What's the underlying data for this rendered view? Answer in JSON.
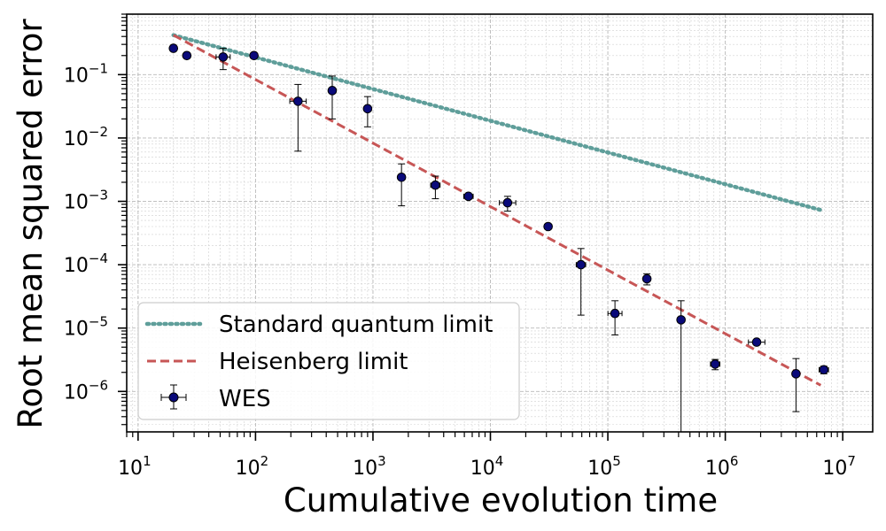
{
  "chart_data": {
    "type": "scatter",
    "xlabel": "Cumulative evolution time",
    "ylabel": "Root mean squared error",
    "xscale": "log",
    "yscale": "log",
    "xlim": [
      8,
      18000000
    ],
    "ylim": [
      2.3e-07,
      0.9
    ],
    "grid": true,
    "legend_position": "bottom-left",
    "x_ticks": [
      {
        "base": "10",
        "exp": "1"
      },
      {
        "base": "10",
        "exp": "2"
      },
      {
        "base": "10",
        "exp": "3"
      },
      {
        "base": "10",
        "exp": "4"
      },
      {
        "base": "10",
        "exp": "5"
      },
      {
        "base": "10",
        "exp": "6"
      },
      {
        "base": "10",
        "exp": "7"
      }
    ],
    "y_ticks": [
      {
        "base": "10",
        "exp": "−1"
      },
      {
        "base": "10",
        "exp": "−2"
      },
      {
        "base": "10",
        "exp": "−3"
      },
      {
        "base": "10",
        "exp": "−4"
      },
      {
        "base": "10",
        "exp": "−5"
      },
      {
        "base": "10",
        "exp": "−6"
      }
    ],
    "series": [
      {
        "name": "Standard quantum limit",
        "kind": "line",
        "style": "dotted",
        "color": "#5f9e9a",
        "x": [
          20,
          6500000
        ],
        "y": [
          0.42,
          0.00073
        ]
      },
      {
        "name": "Heisenberg limit",
        "kind": "line",
        "style": "dashed",
        "color": "#c75656",
        "x": [
          20,
          6500000
        ],
        "y": [
          0.42,
          1.25e-06
        ]
      },
      {
        "name": "WES",
        "kind": "errorbar",
        "color": "#0a0a7a",
        "points": [
          {
            "x": 20,
            "y": 0.26,
            "ylo": null,
            "yhi": null,
            "xerr": 0
          },
          {
            "x": 26,
            "y": 0.2,
            "ylo": null,
            "yhi": null,
            "xerr": 0
          },
          {
            "x": 53,
            "y": 0.19,
            "ylo": 0.12,
            "yhi": 0.26,
            "xerr": 0.06
          },
          {
            "x": 97,
            "y": 0.2,
            "ylo": null,
            "yhi": null,
            "xerr": 0.02
          },
          {
            "x": 230,
            "y": 0.038,
            "ylo": 0.0062,
            "yhi": 0.07,
            "xerr": 0.07
          },
          {
            "x": 450,
            "y": 0.056,
            "ylo": 0.02,
            "yhi": 0.095,
            "xerr": 0.03
          },
          {
            "x": 900,
            "y": 0.029,
            "ylo": 0.015,
            "yhi": 0.045,
            "xerr": 0.03
          },
          {
            "x": 1750,
            "y": 0.0024,
            "ylo": 0.00085,
            "yhi": 0.0039,
            "xerr": 0.02
          },
          {
            "x": 3400,
            "y": 0.0018,
            "ylo": 0.0011,
            "yhi": 0.0025,
            "xerr": 0.04
          },
          {
            "x": 6500,
            "y": 0.0012,
            "ylo": null,
            "yhi": null,
            "xerr": 0.04
          },
          {
            "x": 14000,
            "y": 0.00095,
            "ylo": 0.0007,
            "yhi": 0.0012,
            "xerr": 0.07
          },
          {
            "x": 31000,
            "y": 0.0004,
            "ylo": null,
            "yhi": null,
            "xerr": 0.03
          },
          {
            "x": 59000,
            "y": 0.0001,
            "ylo": 1.6e-05,
            "yhi": 0.00018,
            "xerr": 0.04
          },
          {
            "x": 115000,
            "y": 1.7e-05,
            "ylo": 7.8e-06,
            "yhi": 2.7e-05,
            "xerr": 0.06
          },
          {
            "x": 215000,
            "y": 6e-05,
            "ylo": 4.8e-05,
            "yhi": 7.2e-05,
            "xerr": 0.03
          },
          {
            "x": 420000,
            "y": 1.35e-05,
            "ylo": 2e-07,
            "yhi": 2.7e-05,
            "xerr": 0.03
          },
          {
            "x": 820000,
            "y": 2.7e-06,
            "ylo": 2.2e-06,
            "yhi": 3.2e-06,
            "xerr": 0.04
          },
          {
            "x": 1850000,
            "y": 6e-06,
            "ylo": null,
            "yhi": null,
            "xerr": 0.07
          },
          {
            "x": 4000000,
            "y": 1.9e-06,
            "ylo": 4.8e-07,
            "yhi": 3.3e-06,
            "xerr": 0.03
          },
          {
            "x": 6900000,
            "y": 2.2e-06,
            "ylo": 1.9e-06,
            "yhi": 2.5e-06,
            "xerr": 0.04
          }
        ]
      }
    ]
  }
}
